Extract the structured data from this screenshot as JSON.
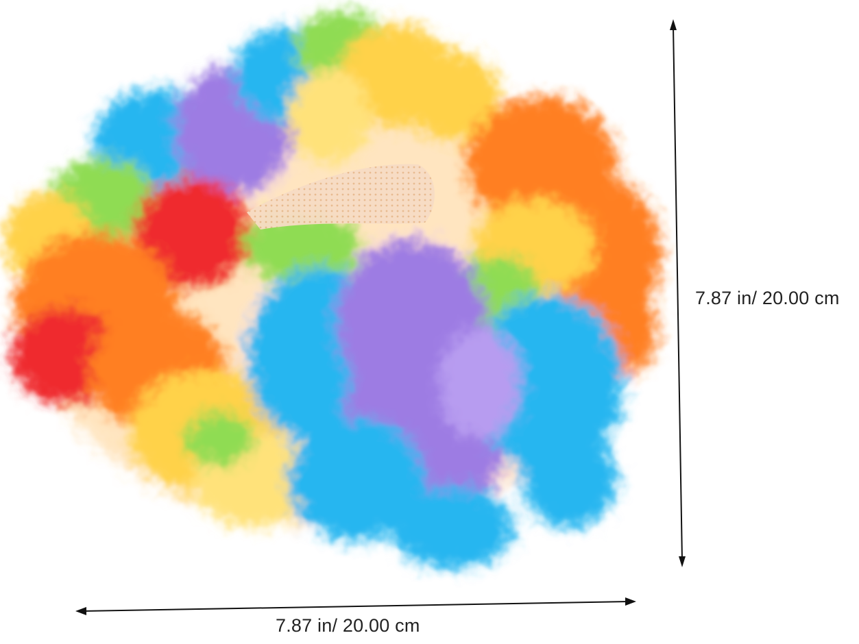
{
  "product": {
    "icon": "rainbow-curly-clown-wig",
    "colors": {
      "red": "#ef2a2f",
      "orange": "#ff7f24",
      "yellow": "#ffd24a",
      "green": "#8fdc52",
      "blue": "#27b6f0",
      "purple": "#9d7be3",
      "cap": "#f7dcc4"
    }
  },
  "dimensions": {
    "height_label": "7.87 in/ 20.00 cm",
    "width_label": "7.87 in/ 20.00 cm",
    "line_color": "#111111"
  }
}
